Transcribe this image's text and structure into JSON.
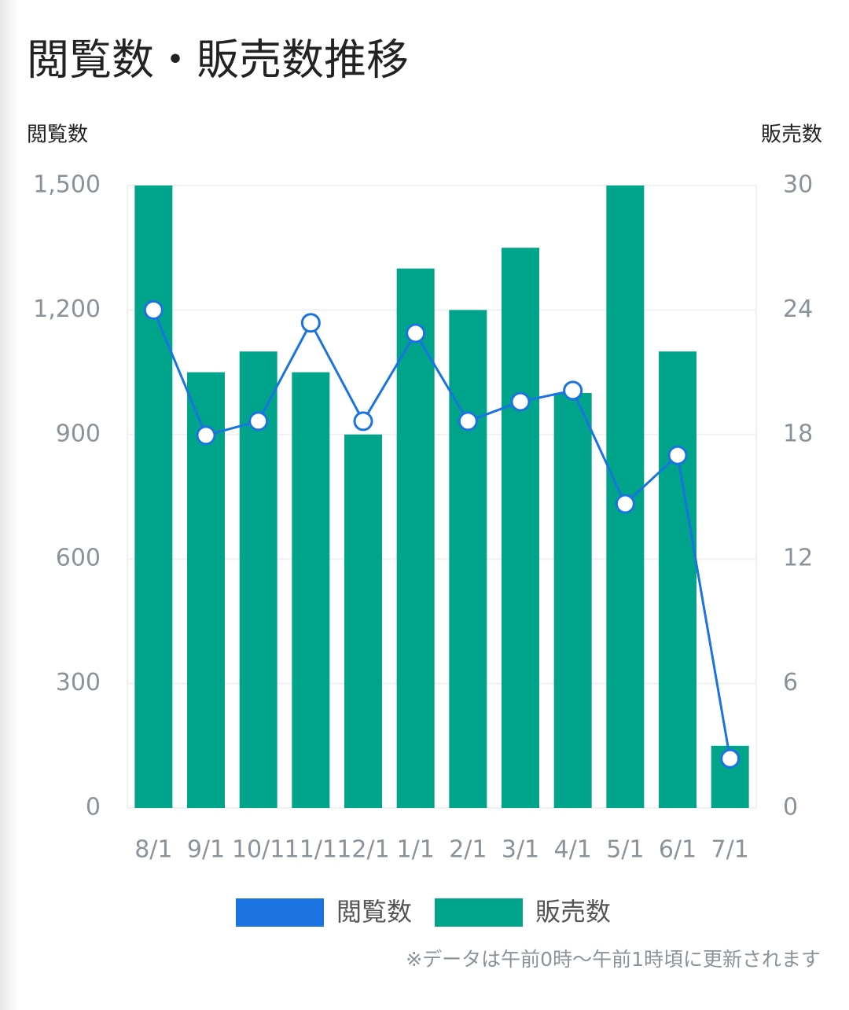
{
  "chart_data": {
    "type": "bar",
    "title": "閲覧数・販売数推移",
    "y_label": "閲覧数",
    "y2_label": "販売数",
    "categories": [
      "8/1",
      "9/1",
      "10/1",
      "11/1",
      "12/1",
      "1/1",
      "2/1",
      "3/1",
      "4/1",
      "5/1",
      "6/1",
      "7/1"
    ],
    "series": [
      {
        "name": "閲覧数",
        "type": "line",
        "axis": "y",
        "color": "#1a73e0",
        "values": [
          1200,
          898,
          932,
          1169,
          932,
          1144,
          932,
          979,
          1006,
          733,
          850,
          119
        ]
      },
      {
        "name": "販売数",
        "type": "bar",
        "axis": "y2",
        "color": "#00a48a",
        "values": [
          30,
          21,
          22,
          21,
          18,
          26,
          24,
          27,
          20,
          30,
          22,
          3
        ]
      }
    ],
    "ylim": [
      0,
      1500
    ],
    "yticks": [
      0,
      300,
      600,
      900,
      {
        "value": 1200,
        "label": "1,200"
      },
      {
        "value": 1500,
        "label": "1,500"
      }
    ],
    "y2lim": [
      0,
      30
    ],
    "y2ticks": [
      0,
      6,
      12,
      18,
      24,
      30
    ],
    "grid": true,
    "note": "※データは午前0時〜午前1時頃に更新されます"
  }
}
